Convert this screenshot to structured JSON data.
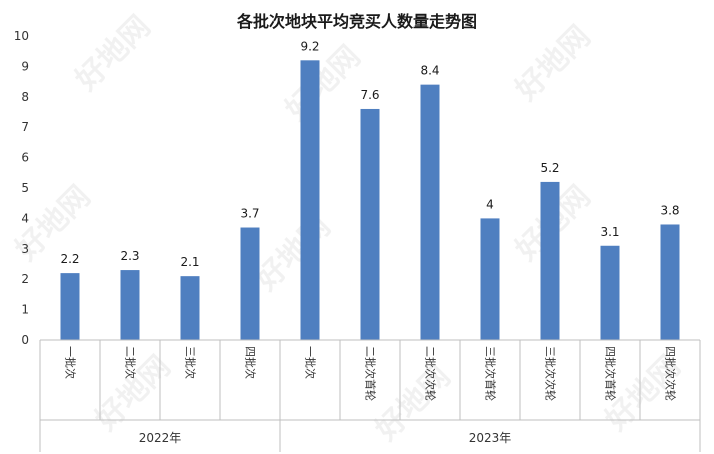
{
  "chart_data": {
    "type": "bar",
    "title": "各批次地块平均竞买人数量走势图",
    "xlabel": "",
    "ylabel": "",
    "ylim": [
      0,
      10
    ],
    "yticks": [
      0,
      1,
      2,
      3,
      4,
      5,
      6,
      7,
      8,
      9,
      10
    ],
    "grid": false,
    "legend": "none",
    "color": "#4f7fc0",
    "groups": [
      {
        "label": "2022年",
        "count": 4
      },
      {
        "label": "2023年",
        "count": 7
      }
    ],
    "categories": [
      "一批次",
      "二批次",
      "三批次",
      "四批次",
      "一批次",
      "二批次首轮",
      "二批次次轮",
      "三批次首轮",
      "三批次次轮",
      "四批次首轮",
      "四批次次轮"
    ],
    "values": [
      2.2,
      2.3,
      2.1,
      3.7,
      9.2,
      7.6,
      8.4,
      4,
      5.2,
      3.1,
      3.8
    ],
    "value_labels": [
      "2.2",
      "2.3",
      "2.1",
      "3.7",
      "9.2",
      "7.6",
      "8.4",
      "4",
      "5.2",
      "3.1",
      "3.8"
    ]
  },
  "watermark": "好地网"
}
